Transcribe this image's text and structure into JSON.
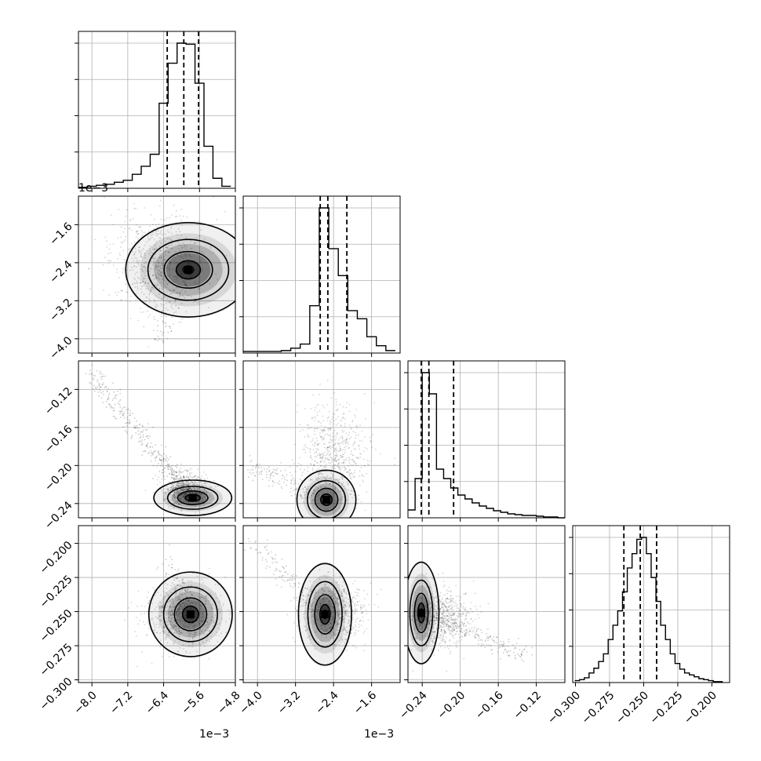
{
  "chart_data": {
    "type": "corner",
    "parameters": 4,
    "offsets": {
      "p0": "1e−3",
      "p1": "1e−3"
    },
    "ranges": {
      "p0": [
        -8.3,
        -4.8
      ],
      "p1": [
        -4.3,
        -1.0
      ],
      "p2": [
        -0.255,
        -0.09
      ],
      "p3": [
        -0.302,
        -0.187
      ]
    },
    "tick_labels": {
      "p0": [
        "−8.0",
        "−7.2",
        "−6.4",
        "−5.6",
        "−4.8"
      ],
      "p1": [
        "−4.0",
        "−3.2",
        "−2.4",
        "−1.6"
      ],
      "p2": [
        "−0.24",
        "−0.20",
        "−0.16",
        "−0.12"
      ],
      "p3": [
        "−0.300",
        "−0.275",
        "−0.250",
        "−0.225",
        "−0.200"
      ]
    },
    "tick_values": {
      "p0": [
        -8.0,
        -7.2,
        -6.4,
        -5.6,
        -4.8
      ],
      "p1": [
        -4.0,
        -3.2,
        -2.4,
        -1.6
      ],
      "p2": [
        -0.24,
        -0.2,
        -0.16,
        -0.12
      ],
      "p3": [
        -0.3,
        -0.275,
        -0.25,
        -0.225,
        -0.2
      ]
    },
    "quantiles": {
      "p0": [
        -6.32,
        -5.95,
        -5.62
      ],
      "p1": [
        -2.68,
        -2.52,
        -2.12
      ],
      "p2": [
        -0.241,
        -0.233,
        -0.207
      ],
      "p3": [
        -0.2645,
        -0.2525,
        -0.2405
      ]
    },
    "histograms": {
      "p0": {
        "bins": [
          -8.3,
          -8.1,
          -7.9,
          -7.7,
          -7.5,
          -7.3,
          -7.1,
          -6.9,
          -6.7,
          -6.5,
          -6.3,
          -6.1,
          -5.9,
          -5.7,
          -5.5,
          -5.3,
          -5.1,
          -4.9
        ],
        "counts": [
          1,
          2,
          3,
          4,
          6,
          8,
          14,
          22,
          34,
          85,
          125,
          145,
          144,
          105,
          42,
          10,
          2
        ]
      },
      "p1": {
        "bins": [
          -4.3,
          -4.1,
          -3.9,
          -3.7,
          -3.5,
          -3.3,
          -3.1,
          -2.9,
          -2.7,
          -2.5,
          -2.3,
          -2.1,
          -1.9,
          -1.7,
          -1.5,
          -1.3,
          -1.1
        ],
        "counts": [
          2,
          2,
          2,
          2,
          3,
          6,
          11,
          58,
          178,
          128,
          95,
          52,
          42,
          20,
          9,
          3
        ]
      },
      "p2": {
        "bins": [
          -0.255,
          -0.2475,
          -0.24,
          -0.2325,
          -0.225,
          -0.2175,
          -0.21,
          -0.2025,
          -0.195,
          -0.1875,
          -0.18,
          -0.1725,
          -0.165,
          -0.1575,
          -0.15,
          -0.1425,
          -0.135,
          -0.1275,
          -0.12,
          -0.1125,
          -0.105,
          -0.0975,
          -0.09
        ],
        "counts": [
          10,
          50,
          185,
          158,
          62,
          50,
          38,
          29,
          24,
          19,
          15,
          12,
          9,
          7,
          5,
          4,
          3,
          3,
          2,
          1,
          1,
          0
        ]
      },
      "p3": {
        "bins": [
          -0.3005,
          -0.297,
          -0.2935,
          -0.29,
          -0.2865,
          -0.283,
          -0.2795,
          -0.276,
          -0.2725,
          -0.269,
          -0.2655,
          -0.262,
          -0.2585,
          -0.255,
          -0.2515,
          -0.248,
          -0.2445,
          -0.241,
          -0.2375,
          -0.234,
          -0.2305,
          -0.227,
          -0.2235,
          -0.22,
          -0.2165,
          -0.213,
          -0.2095,
          -0.206,
          -0.2025,
          -0.199,
          -0.1955,
          -0.192
        ],
        "counts": [
          2,
          3,
          5,
          10,
          15,
          22,
          30,
          45,
          60,
          75,
          95,
          120,
          135,
          150,
          152,
          135,
          110,
          85,
          60,
          45,
          30,
          20,
          14,
          10,
          8,
          6,
          4,
          3,
          2,
          1,
          1
        ]
      }
    },
    "pairs": [
      {
        "x": "p0",
        "y": "p1",
        "center": [
          -5.85,
          -2.55
        ],
        "spread": [
          0.45,
          0.32
        ],
        "tail_to": [
          -6.55,
          -4.05
        ],
        "tail_count": 80,
        "bg_cloud": [
          -6.5,
          -2.4,
          0.9,
          0.9
        ]
      },
      {
        "x": "p0",
        "y": "p2",
        "center": [
          -5.75,
          -0.234
        ],
        "spread": [
          0.28,
          0.006
        ],
        "tail_to": [
          -8.0,
          -0.105
        ],
        "tail_count": 350,
        "bg_cloud": [
          -5.9,
          -0.225,
          0.4,
          0.014
        ]
      },
      {
        "x": "p1",
        "y": "p2",
        "center": [
          -2.55,
          -0.236
        ],
        "spread": [
          0.2,
          0.01
        ],
        "tail_to": [
          -4.2,
          -0.2
        ],
        "tail_count": 140,
        "bg_cloud": [
          -2.4,
          -0.19,
          0.6,
          0.045
        ]
      },
      {
        "x": "p0",
        "y": "p3",
        "center": [
          -5.8,
          -0.252
        ],
        "spread": [
          0.3,
          0.01
        ],
        "tail_to": [
          -6.4,
          -0.205
        ],
        "tail_count": 60,
        "bg_cloud": [
          -6.0,
          -0.252,
          0.7,
          0.02
        ]
      },
      {
        "x": "p1",
        "y": "p3",
        "center": [
          -2.58,
          -0.252
        ],
        "spread": [
          0.18,
          0.012
        ],
        "tail_to": [
          -4.1,
          -0.198
        ],
        "tail_count": 120,
        "bg_cloud": [
          -2.4,
          -0.25,
          0.55,
          0.02
        ]
      },
      {
        "x": "p2",
        "y": "p3",
        "center": [
          -0.241,
          -0.251
        ],
        "spread": [
          0.006,
          0.012
        ],
        "tail_to": [
          -0.13,
          -0.283
        ],
        "tail_count": 200,
        "bg_cloud": [
          -0.22,
          -0.255,
          0.025,
          0.018
        ]
      }
    ],
    "grid": true
  }
}
